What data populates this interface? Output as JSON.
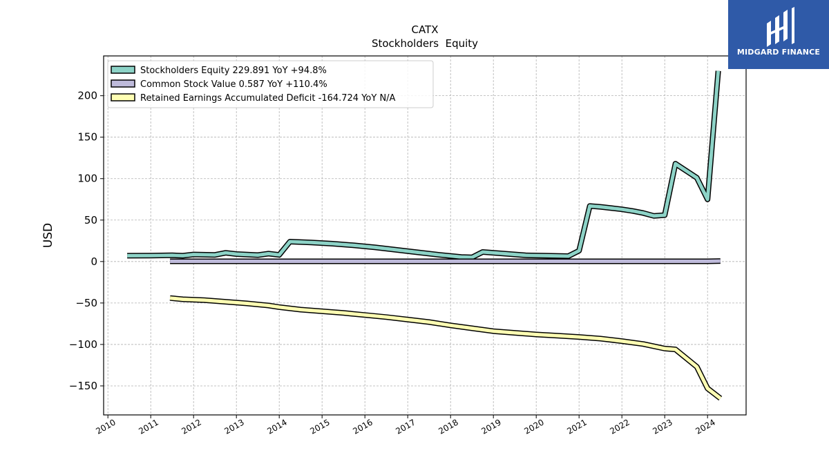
{
  "chart_data": {
    "type": "line",
    "title": "CATX",
    "subtitle": "Stockholders  Equity",
    "ylabel": "USD",
    "xlabel": "",
    "xlim": [
      2009.9,
      2024.9
    ],
    "ylim": [
      -185,
      248
    ],
    "x_ticks": [
      2010,
      2011,
      2012,
      2013,
      2014,
      2015,
      2016,
      2017,
      2018,
      2019,
      2020,
      2021,
      2022,
      2023,
      2024
    ],
    "x_tick_labels": [
      "2010",
      "2011",
      "2012",
      "2013",
      "2014",
      "2015",
      "2016",
      "2017",
      "2018",
      "2019",
      "2020",
      "2021",
      "2022",
      "2023",
      "2024"
    ],
    "y_ticks": [
      -150,
      -100,
      -50,
      0,
      50,
      100,
      150,
      200
    ],
    "y_tick_labels": [
      "−150",
      "−100",
      "−50",
      "0",
      "50",
      "100",
      "150",
      "200"
    ],
    "grid": true,
    "legend_position": "upper-left",
    "series": [
      {
        "name": "Stockholders Equity  229.891 YoY +94.8%",
        "color": "#8dd3c7",
        "x": [
          2010.45,
          2011.0,
          2011.5,
          2011.75,
          2012.0,
          2012.5,
          2012.75,
          2013.0,
          2013.5,
          2013.75,
          2014.0,
          2014.25,
          2014.75,
          2015.25,
          2015.75,
          2016.25,
          2016.75,
          2017.25,
          2017.75,
          2018.25,
          2018.5,
          2018.75,
          2019.25,
          2019.75,
          2020.25,
          2020.75,
          2021.0,
          2021.25,
          2021.5,
          2021.75,
          2022.0,
          2022.25,
          2022.5,
          2022.75,
          2023.0,
          2023.25,
          2023.75,
          2024.0,
          2024.25
        ],
        "y": [
          7,
          7.2,
          7.5,
          7.0,
          8.5,
          8.0,
          10.5,
          9.0,
          7.8,
          9.5,
          8.0,
          24.0,
          23.0,
          21.5,
          19.5,
          17.0,
          14.0,
          11.0,
          8.0,
          5.5,
          5.0,
          11.5,
          9.5,
          7.5,
          7.0,
          6.5,
          13.0,
          67.0,
          66.0,
          64.5,
          63.0,
          61.0,
          58.5,
          55.0,
          56.0,
          118.0,
          101.0,
          75.0,
          229.9
        ]
      },
      {
        "name": "Common Stock Value  0.587 YoY +110.4%",
        "color": "#bebada",
        "x": [
          2011.45,
          2012.0,
          2013.0,
          2014.0,
          2015.0,
          2016.0,
          2017.0,
          2018.0,
          2019.0,
          2020.0,
          2021.0,
          2022.0,
          2023.0,
          2024.0,
          2024.3
        ],
        "y": [
          0.3,
          0.3,
          0.3,
          0.3,
          0.3,
          0.3,
          0.3,
          0.3,
          0.3,
          0.3,
          0.3,
          0.3,
          0.3,
          0.3,
          0.587
        ]
      },
      {
        "name": "Retained Earnings Accumulated Deficit  -164.724 YoY N/A",
        "color": "#ffffb3",
        "x": [
          2011.45,
          2011.75,
          2012.25,
          2012.75,
          2013.25,
          2013.75,
          2014.0,
          2014.5,
          2015.0,
          2015.5,
          2016.0,
          2016.5,
          2017.0,
          2017.5,
          2018.0,
          2018.5,
          2019.0,
          2019.5,
          2020.0,
          2020.5,
          2021.0,
          2021.5,
          2022.0,
          2022.5,
          2023.0,
          2023.25,
          2023.75,
          2024.0,
          2024.3
        ],
        "y": [
          -44,
          -45.5,
          -46.5,
          -48.5,
          -50.5,
          -53,
          -55,
          -58,
          -60,
          -62,
          -64.5,
          -67,
          -70,
          -73,
          -77,
          -80.5,
          -84,
          -86,
          -88,
          -89.5,
          -91,
          -93,
          -96,
          -99.5,
          -105,
          -106,
          -127,
          -153,
          -165
        ]
      }
    ]
  },
  "brand": {
    "name": "MIDGARD FINANCE",
    "color": "#2f5aa8"
  }
}
